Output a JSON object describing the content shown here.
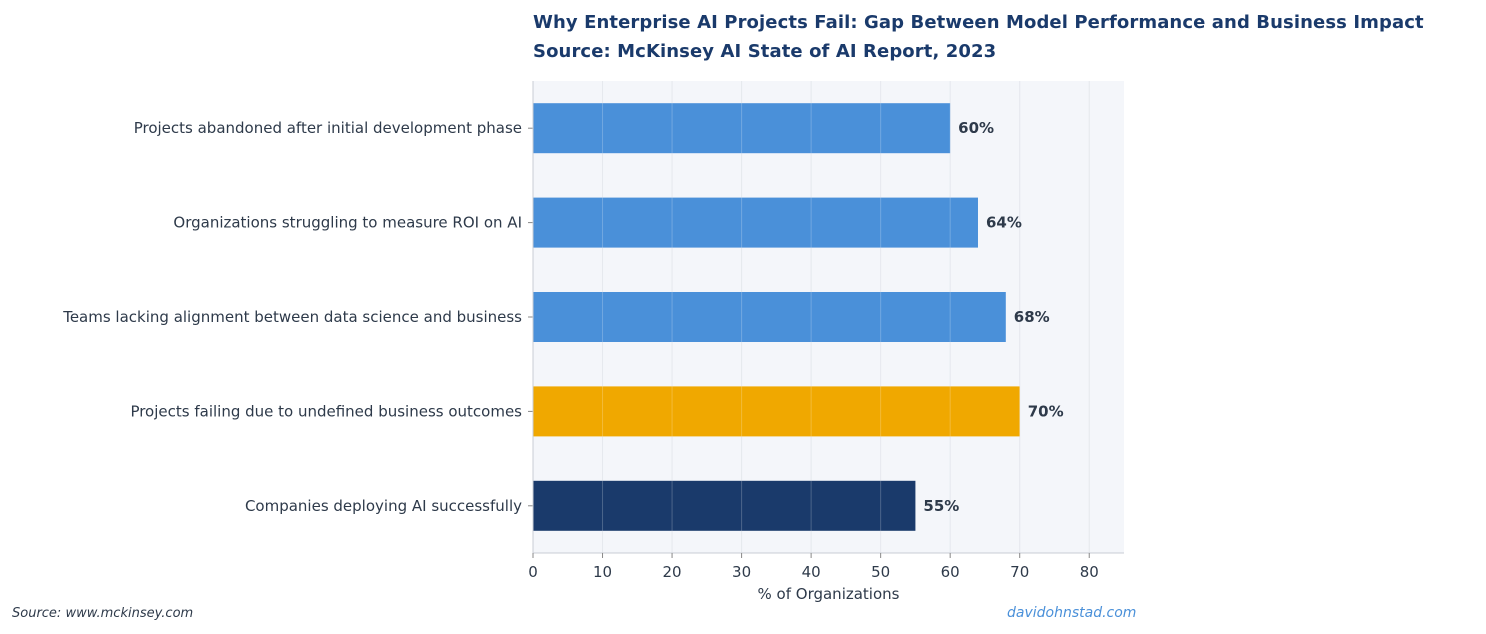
{
  "chart_data": {
    "type": "bar",
    "orientation": "horizontal",
    "title": "Why Enterprise AI Projects Fail: Gap Between Model Performance and Business Impact",
    "subtitle": "Source: McKinsey AI State of AI Report, 2023",
    "xlabel": "% of Organizations",
    "ylabel": "",
    "xlim": [
      0,
      85
    ],
    "xticks": [
      0,
      10,
      20,
      30,
      40,
      50,
      60,
      70,
      80
    ],
    "grid": true,
    "categories": [
      "Projects abandoned after initial development phase",
      "Organizations struggling to measure ROI on AI",
      "Teams lacking alignment between data science and business",
      "Projects failing due to undefined business outcomes",
      "Companies deploying AI successfully"
    ],
    "values": [
      60,
      64,
      68,
      70,
      55
    ],
    "value_labels": [
      "60%",
      "64%",
      "68%",
      "70%",
      "55%"
    ],
    "colors": [
      "#4a90d9",
      "#4a90d9",
      "#4a90d9",
      "#f0a800",
      "#1a3a6b"
    ]
  },
  "footer": {
    "source": "Source: www.mckinsey.com",
    "credit": "davidohnstad.com"
  },
  "colors": {
    "plot_background": "#f4f6fa",
    "title": "#1a3a6b",
    "text": "#2e3a4a"
  }
}
